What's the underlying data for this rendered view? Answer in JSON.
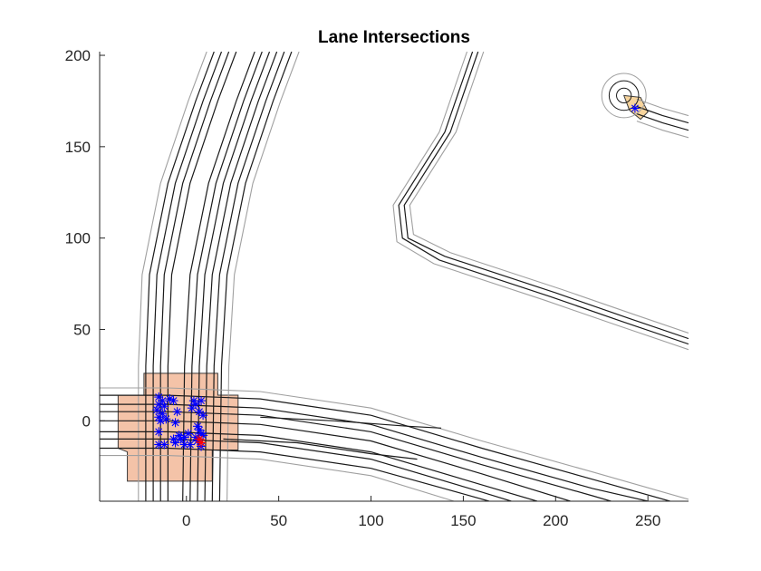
{
  "chart_data": {
    "type": "scatter",
    "title": "Lane Intersections",
    "xlabel": "",
    "ylabel": "",
    "xlim": [
      -47,
      272
    ],
    "ylim": [
      -44,
      202
    ],
    "xticks": [
      0,
      50,
      100,
      150,
      200,
      250
    ],
    "yticks": [
      0,
      50,
      100,
      150,
      200
    ],
    "xtick_labels": [
      "0",
      "50",
      "100",
      "150",
      "200",
      "250"
    ],
    "ytick_labels": [
      "0",
      "50",
      "100",
      "150",
      "200"
    ],
    "grid": false,
    "legend": "none",
    "colors": {
      "lane": "#1a1a1a",
      "boundary": "#a0a0a0",
      "junction_fill": "#f4c3a8",
      "junction_edge": "#3a3a3a",
      "minor_junction_fill": "#f7d49c",
      "intersection_marker": "#0000ff",
      "highlight_marker": "#ff0000"
    },
    "junctions": [
      {
        "name": "main",
        "outline": [
          [
            -37,
            14
          ],
          [
            -37,
            -15
          ],
          [
            -32,
            -17
          ],
          [
            -32,
            -33
          ],
          [
            14,
            -33
          ],
          [
            14,
            -16
          ],
          [
            28,
            -16
          ],
          [
            28,
            14
          ],
          [
            17,
            14
          ],
          [
            17,
            26
          ],
          [
            -23,
            26
          ],
          [
            -23,
            14
          ],
          [
            -37,
            14
          ]
        ]
      },
      {
        "name": "minor",
        "outline": [
          [
            237,
            178
          ],
          [
            246,
            177
          ],
          [
            250,
            169
          ],
          [
            246,
            165
          ],
          [
            240,
            170
          ],
          [
            237,
            178
          ]
        ]
      }
    ],
    "lanes": [
      {
        "kind": "lane",
        "points": [
          [
            -22,
            -44
          ],
          [
            -22,
            30
          ],
          [
            -20,
            80
          ],
          [
            -10,
            130
          ],
          [
            5,
            175
          ],
          [
            15,
            202
          ]
        ]
      },
      {
        "kind": "lane",
        "points": [
          [
            -18,
            -44
          ],
          [
            -18,
            30
          ],
          [
            -16,
            80
          ],
          [
            -6,
            130
          ],
          [
            9,
            175
          ],
          [
            19,
            202
          ]
        ]
      },
      {
        "kind": "lane",
        "points": [
          [
            -14,
            -44
          ],
          [
            -14,
            30
          ],
          [
            -12,
            80
          ],
          [
            -2,
            130
          ],
          [
            13,
            175
          ],
          [
            23,
            202
          ]
        ]
      },
      {
        "kind": "lane",
        "points": [
          [
            -10,
            -44
          ],
          [
            -10,
            30
          ],
          [
            -8,
            80
          ],
          [
            2,
            130
          ],
          [
            17,
            175
          ],
          [
            27,
            202
          ]
        ]
      },
      {
        "kind": "lane",
        "points": [
          [
            -2,
            -44
          ],
          [
            -1,
            30
          ],
          [
            2,
            80
          ],
          [
            12,
            130
          ],
          [
            27,
            175
          ],
          [
            37,
            202
          ]
        ]
      },
      {
        "kind": "lane",
        "points": [
          [
            2,
            -44
          ],
          [
            3,
            30
          ],
          [
            6,
            80
          ],
          [
            16,
            130
          ],
          [
            31,
            175
          ],
          [
            41,
            202
          ]
        ]
      },
      {
        "kind": "lane",
        "points": [
          [
            6,
            -44
          ],
          [
            7,
            30
          ],
          [
            10,
            80
          ],
          [
            20,
            130
          ],
          [
            35,
            175
          ],
          [
            45,
            202
          ]
        ]
      },
      {
        "kind": "lane",
        "points": [
          [
            10,
            -44
          ],
          [
            11,
            30
          ],
          [
            14,
            80
          ],
          [
            24,
            130
          ],
          [
            39,
            175
          ],
          [
            49,
            202
          ]
        ]
      },
      {
        "kind": "lane",
        "points": [
          [
            14,
            -44
          ],
          [
            15,
            30
          ],
          [
            18,
            80
          ],
          [
            28,
            130
          ],
          [
            43,
            175
          ],
          [
            53,
            202
          ]
        ]
      },
      {
        "kind": "lane",
        "points": [
          [
            18,
            -44
          ],
          [
            19,
            30
          ],
          [
            22,
            80
          ],
          [
            32,
            130
          ],
          [
            47,
            175
          ],
          [
            57,
            202
          ]
        ]
      },
      {
        "kind": "boundary",
        "points": [
          [
            -26,
            -44
          ],
          [
            -26,
            30
          ],
          [
            -24,
            80
          ],
          [
            -14,
            130
          ],
          [
            1,
            175
          ],
          [
            11,
            202
          ]
        ]
      },
      {
        "kind": "boundary",
        "points": [
          [
            22,
            -44
          ],
          [
            23,
            30
          ],
          [
            26,
            80
          ],
          [
            36,
            130
          ],
          [
            51,
            175
          ],
          [
            61,
            202
          ]
        ]
      },
      {
        "kind": "lane",
        "points": [
          [
            -47,
            14
          ],
          [
            -10,
            14
          ],
          [
            40,
            12
          ],
          [
            100,
            3
          ],
          [
            160,
            -15
          ],
          [
            220,
            -32
          ],
          [
            262,
            -44
          ]
        ]
      },
      {
        "kind": "lane",
        "points": [
          [
            -47,
            9
          ],
          [
            -10,
            9
          ],
          [
            40,
            7
          ],
          [
            100,
            -2
          ],
          [
            160,
            -20
          ],
          [
            220,
            -37
          ],
          [
            250,
            -44
          ]
        ]
      },
      {
        "kind": "lane",
        "points": [
          [
            -47,
            5
          ],
          [
            -10,
            5
          ],
          [
            40,
            3
          ],
          [
            100,
            -6
          ],
          [
            160,
            -24
          ],
          [
            220,
            -41
          ],
          [
            230,
            -44
          ]
        ]
      },
      {
        "kind": "lane",
        "points": [
          [
            -47,
            0
          ],
          [
            -10,
            0
          ],
          [
            40,
            -2
          ],
          [
            100,
            -11
          ],
          [
            160,
            -29
          ],
          [
            208,
            -44
          ]
        ]
      },
      {
        "kind": "lane",
        "points": [
          [
            -47,
            -6
          ],
          [
            -10,
            -6
          ],
          [
            40,
            -8
          ],
          [
            100,
            -17
          ],
          [
            160,
            -35
          ],
          [
            190,
            -44
          ]
        ]
      },
      {
        "kind": "lane",
        "points": [
          [
            -47,
            -10
          ],
          [
            -10,
            -10
          ],
          [
            40,
            -12
          ],
          [
            100,
            -21
          ],
          [
            160,
            -39
          ],
          [
            176,
            -44
          ]
        ]
      },
      {
        "kind": "lane",
        "points": [
          [
            -47,
            -15
          ],
          [
            -10,
            -15
          ],
          [
            40,
            -17
          ],
          [
            100,
            -26
          ],
          [
            150,
            -40
          ],
          [
            164,
            -44
          ]
        ]
      },
      {
        "kind": "boundary",
        "points": [
          [
            -47,
            18
          ],
          [
            -10,
            18
          ],
          [
            40,
            16
          ],
          [
            100,
            7
          ],
          [
            160,
            -11
          ],
          [
            220,
            -28
          ],
          [
            272,
            -43
          ]
        ]
      },
      {
        "kind": "boundary",
        "points": [
          [
            -47,
            -19
          ],
          [
            -10,
            -19
          ],
          [
            40,
            -21
          ],
          [
            100,
            -30
          ],
          [
            145,
            -44
          ]
        ]
      },
      {
        "kind": "lane",
        "points": [
          [
            20,
            -10
          ],
          [
            60,
            -12
          ],
          [
            100,
            -18
          ],
          [
            125,
            -21
          ]
        ]
      },
      {
        "kind": "lane",
        "points": [
          [
            40,
            2
          ],
          [
            80,
            0
          ],
          [
            120,
            -3
          ],
          [
            138,
            -4
          ]
        ]
      },
      {
        "kind": "lane",
        "points": [
          [
            158,
            202
          ],
          [
            143,
            158
          ],
          [
            118,
            118
          ],
          [
            120,
            100
          ],
          [
            140,
            90
          ],
          [
            200,
            70
          ],
          [
            240,
            56
          ],
          [
            272,
            45
          ]
        ]
      },
      {
        "kind": "lane",
        "points": [
          [
            155,
            202
          ],
          [
            140,
            158
          ],
          [
            115,
            118
          ],
          [
            117,
            100
          ],
          [
            137,
            88
          ],
          [
            197,
            68
          ],
          [
            237,
            54
          ],
          [
            272,
            42
          ]
        ]
      },
      {
        "kind": "boundary",
        "points": [
          [
            161,
            202
          ],
          [
            146,
            158
          ],
          [
            121,
            118
          ],
          [
            123,
            102
          ],
          [
            143,
            92
          ],
          [
            203,
            72
          ],
          [
            243,
            58
          ],
          [
            272,
            48
          ]
        ]
      },
      {
        "kind": "boundary",
        "points": [
          [
            152,
            202
          ],
          [
            137,
            158
          ],
          [
            112,
            118
          ],
          [
            114,
            98
          ],
          [
            134,
            86
          ],
          [
            194,
            66
          ],
          [
            234,
            52
          ],
          [
            272,
            39
          ]
        ]
      },
      {
        "kind": "lane",
        "points": [
          [
            244,
            172
          ],
          [
            258,
            167
          ],
          [
            272,
            163
          ]
        ]
      },
      {
        "kind": "lane",
        "points": [
          [
            244,
            168
          ],
          [
            258,
            163
          ],
          [
            272,
            159
          ]
        ]
      },
      {
        "kind": "boundary",
        "points": [
          [
            244,
            176
          ],
          [
            258,
            171
          ],
          [
            272,
            167
          ]
        ]
      },
      {
        "kind": "boundary",
        "points": [
          [
            244,
            164
          ],
          [
            258,
            159
          ],
          [
            272,
            155
          ]
        ]
      },
      {
        "kind": "circle",
        "center": [
          237,
          178
        ],
        "r": 4
      },
      {
        "kind": "circle",
        "center": [
          237,
          178
        ],
        "r": 8
      },
      {
        "kind": "circle",
        "center": [
          237,
          178
        ],
        "r": 12,
        "boundary": true
      }
    ],
    "points": {
      "blue": [
        [
          -15,
          13
        ],
        [
          -13,
          11
        ],
        [
          -15,
          9
        ],
        [
          -12,
          8
        ],
        [
          -16,
          6
        ],
        [
          -13,
          4
        ],
        [
          -15,
          2
        ],
        [
          -11,
          1
        ],
        [
          -14,
          0
        ],
        [
          -9,
          12
        ],
        [
          -7,
          11
        ],
        [
          -6,
          -1
        ],
        [
          -5,
          5
        ],
        [
          -15,
          -6
        ],
        [
          -15,
          -13
        ],
        [
          -12,
          -13
        ],
        [
          -7,
          -10
        ],
        [
          -6,
          -12
        ],
        [
          -3,
          -10
        ],
        [
          -1,
          -9
        ],
        [
          1,
          -7
        ],
        [
          2,
          -13
        ],
        [
          3,
          7
        ],
        [
          4,
          11
        ],
        [
          5,
          9
        ],
        [
          6,
          -3
        ],
        [
          7,
          -5
        ],
        [
          7,
          5
        ],
        [
          8,
          -7
        ],
        [
          8,
          -14
        ],
        [
          8,
          11
        ],
        [
          9,
          3
        ],
        [
          9,
          -8
        ],
        [
          -1,
          -13
        ],
        [
          -4,
          -8
        ],
        [
          5,
          -9
        ],
        [
          6,
          -11
        ],
        [
          243,
          171
        ]
      ],
      "red": [
        [
          7,
          -10
        ],
        [
          8,
          -12
        ]
      ]
    }
  }
}
